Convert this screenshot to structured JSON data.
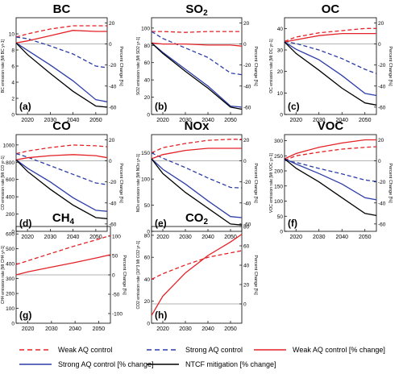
{
  "chart_data": [
    {
      "type": "line",
      "panel": "(a)",
      "title": "BC",
      "ylabel": "BC emission rate [Mt BC yr-1]",
      "y2label": "Percent Change [%]",
      "xticks": [
        "2020",
        "2030",
        "2040",
        "2050"
      ],
      "yticks": [
        "0",
        "2",
        "4",
        "6",
        "8",
        "10"
      ],
      "y2ticks": [
        "20",
        "0",
        "-20",
        "-40",
        "-60"
      ],
      "xlim": [
        2015,
        2055
      ],
      "ylim": [
        0,
        12
      ],
      "y2lim": [
        -67,
        25
      ],
      "series": [
        {
          "name": "Weak AQ control",
          "axis": "left",
          "x": [
            2015,
            2020,
            2030,
            2040,
            2050,
            2055
          ],
          "values": [
            9.6,
            10.0,
            10.6,
            11.0,
            11.0,
            11.0
          ]
        },
        {
          "name": "Strong AQ control",
          "axis": "left",
          "x": [
            2015,
            2020,
            2030,
            2040,
            2050,
            2055
          ],
          "values": [
            9.6,
            9.4,
            8.5,
            7.5,
            6.0,
            5.8
          ]
        },
        {
          "name": "Weak AQ control [% change]",
          "axis": "right",
          "x": [
            2015,
            2020,
            2030,
            2040,
            2050,
            2055
          ],
          "values": [
            1,
            3,
            8,
            13,
            12,
            12
          ]
        },
        {
          "name": "Strong AQ control [% change]",
          "axis": "right",
          "x": [
            2015,
            2020,
            2030,
            2040,
            2050,
            2055
          ],
          "values": [
            1,
            -6,
            -20,
            -35,
            -53,
            -55
          ]
        },
        {
          "name": "NTCF mitigation [% change]",
          "axis": "right",
          "x": [
            2015,
            2020,
            2030,
            2040,
            2050,
            2055
          ],
          "values": [
            1,
            -10,
            -28,
            -45,
            -59,
            -60
          ]
        }
      ]
    },
    {
      "type": "line",
      "panel": "(b)",
      "title": "SO2",
      "ylabel": "SO2 emission rate [Mt SO2 yr-1]",
      "y2label": "Percent Change [%]",
      "xticks": [
        "2020",
        "2030",
        "2040",
        "2050"
      ],
      "yticks": [
        "0",
        "20",
        "40",
        "60",
        "80",
        "100"
      ],
      "y2ticks": [
        "20",
        "0",
        "-20",
        "-40",
        "-60"
      ],
      "xlim": [
        2015,
        2055
      ],
      "ylim": [
        0,
        112
      ],
      "y2lim": [
        -67,
        25
      ],
      "series": [
        {
          "name": "Weak AQ control",
          "axis": "left",
          "x": [
            2015,
            2020,
            2030,
            2040,
            2050,
            2055
          ],
          "values": [
            96,
            96,
            95,
            96,
            96,
            96
          ]
        },
        {
          "name": "Strong AQ control",
          "axis": "left",
          "x": [
            2015,
            2020,
            2030,
            2040,
            2050,
            2055
          ],
          "values": [
            96,
            88,
            77,
            66,
            48,
            46
          ]
        },
        {
          "name": "Weak AQ control [% change]",
          "axis": "right",
          "x": [
            2015,
            2020,
            2030,
            2040,
            2050,
            2055
          ],
          "values": [
            1,
            0,
            0,
            -1,
            -1,
            -2
          ]
        },
        {
          "name": "Strong AQ control [% change]",
          "axis": "right",
          "x": [
            2015,
            2020,
            2030,
            2040,
            2050,
            2055
          ],
          "values": [
            1,
            -8,
            -24,
            -40,
            -59,
            -60
          ]
        },
        {
          "name": "NTCF mitigation [% change]",
          "axis": "right",
          "x": [
            2015,
            2020,
            2030,
            2040,
            2050,
            2055
          ],
          "values": [
            1,
            -9,
            -26,
            -42,
            -60,
            -62
          ]
        }
      ]
    },
    {
      "type": "line",
      "panel": "(c)",
      "title": "OC",
      "ylabel": "OC emission rate [Mt OC yr-1]",
      "y2label": "Percent Change [%]",
      "xticks": [
        "2020",
        "2030",
        "2040",
        "2050"
      ],
      "yticks": [
        "0",
        "10",
        "20",
        "30",
        "40"
      ],
      "y2ticks": [
        "20",
        "0",
        "-20",
        "-40",
        "-60"
      ],
      "xlim": [
        2015,
        2055
      ],
      "ylim": [
        0,
        45
      ],
      "y2lim": [
        -67,
        25
      ],
      "series": [
        {
          "name": "Weak AQ control",
          "axis": "left",
          "x": [
            2015,
            2020,
            2030,
            2040,
            2050,
            2055
          ],
          "values": [
            34,
            36,
            38,
            39,
            40,
            40
          ]
        },
        {
          "name": "Strong AQ control",
          "axis": "left",
          "x": [
            2015,
            2020,
            2030,
            2040,
            2050,
            2055
          ],
          "values": [
            34,
            33,
            30,
            26,
            21,
            19
          ]
        },
        {
          "name": "Weak AQ control [% change]",
          "axis": "right",
          "x": [
            2015,
            2020,
            2030,
            2040,
            2050,
            2055
          ],
          "values": [
            2,
            4,
            8,
            10,
            10,
            10
          ]
        },
        {
          "name": "Strong AQ control [% change]",
          "axis": "right",
          "x": [
            2015,
            2020,
            2030,
            2040,
            2050,
            2055
          ],
          "values": [
            2,
            -5,
            -15,
            -30,
            -47,
            -49
          ]
        },
        {
          "name": "NTCF mitigation [% change]",
          "axis": "right",
          "x": [
            2015,
            2020,
            2030,
            2040,
            2050,
            2055
          ],
          "values": [
            2,
            -9,
            -25,
            -42,
            -56,
            -58
          ]
        }
      ]
    },
    {
      "type": "line",
      "panel": "(d)",
      "title": "CO",
      "ylabel": "CO emission rate [Mt CO yr-1]",
      "y2label": "Percent Change [%]",
      "xticks": [
        "2020",
        "2030",
        "2040",
        "2050"
      ],
      "yticks": [
        "0",
        "200",
        "400",
        "600",
        "800",
        "1000"
      ],
      "y2ticks": [
        "20",
        "0",
        "-20",
        "-40",
        "-60"
      ],
      "xlim": [
        2015,
        2055
      ],
      "ylim": [
        0,
        1120
      ],
      "y2lim": [
        -67,
        25
      ],
      "series": [
        {
          "name": "Weak AQ control",
          "axis": "left",
          "x": [
            2015,
            2020,
            2030,
            2040,
            2050,
            2055
          ],
          "values": [
            900,
            930,
            970,
            1000,
            990,
            980
          ]
        },
        {
          "name": "Strong AQ control",
          "axis": "left",
          "x": [
            2015,
            2020,
            2030,
            2040,
            2050,
            2055
          ],
          "values": [
            900,
            860,
            760,
            660,
            560,
            540
          ]
        },
        {
          "name": "Weak AQ control [% change]",
          "axis": "right",
          "x": [
            2015,
            2020,
            2030,
            2040,
            2050,
            2055
          ],
          "values": [
            1,
            3,
            5,
            6,
            5,
            3
          ]
        },
        {
          "name": "Strong AQ control [% change]",
          "axis": "right",
          "x": [
            2015,
            2020,
            2030,
            2040,
            2050,
            2055
          ],
          "values": [
            1,
            -7,
            -20,
            -35,
            -47,
            -48
          ]
        },
        {
          "name": "NTCF mitigation [% change]",
          "axis": "right",
          "x": [
            2015,
            2020,
            2030,
            2040,
            2050,
            2055
          ],
          "values": [
            1,
            -10,
            -27,
            -42,
            -54,
            -55
          ]
        }
      ]
    },
    {
      "type": "line",
      "panel": "(e)",
      "title": "NOx",
      "ylabel": "NOx emission rate [Mt NOx yr-1]",
      "y2label": "Percent Change [%]",
      "xticks": [
        "2020",
        "2030",
        "2040",
        "2050"
      ],
      "yticks": [
        "0",
        "50",
        "100",
        "150"
      ],
      "y2ticks": [
        "20",
        "0",
        "-20",
        "-40",
        "-60"
      ],
      "xlim": [
        2015,
        2055
      ],
      "ylim": [
        0,
        185
      ],
      "y2lim": [
        -67,
        25
      ],
      "series": [
        {
          "name": "Weak AQ control",
          "axis": "left",
          "x": [
            2015,
            2020,
            2030,
            2040,
            2050,
            2055
          ],
          "values": [
            150,
            160,
            168,
            174,
            176,
            176
          ]
        },
        {
          "name": "Strong AQ control",
          "axis": "left",
          "x": [
            2015,
            2020,
            2030,
            2040,
            2050,
            2055
          ],
          "values": [
            150,
            140,
            122,
            102,
            84,
            83
          ]
        },
        {
          "name": "Weak AQ control [% change]",
          "axis": "right",
          "x": [
            2015,
            2020,
            2030,
            2040,
            2050,
            2055
          ],
          "values": [
            2,
            6,
            10,
            12,
            12,
            12
          ]
        },
        {
          "name": "Strong AQ control [% change]",
          "axis": "right",
          "x": [
            2015,
            2020,
            2030,
            2040,
            2050,
            2055
          ],
          "values": [
            2,
            -8,
            -22,
            -38,
            -53,
            -54
          ]
        },
        {
          "name": "NTCF mitigation [% change]",
          "axis": "right",
          "x": [
            2015,
            2020,
            2030,
            2040,
            2050,
            2055
          ],
          "values": [
            2,
            -12,
            -30,
            -45,
            -60,
            -61
          ]
        }
      ]
    },
    {
      "type": "line",
      "panel": "(f)",
      "title": "VOC",
      "ylabel": "VOC emission rate [Mt VOC yr-1]",
      "y2label": "Percent Change [%]",
      "xticks": [
        "2020",
        "2030",
        "2040",
        "2050"
      ],
      "yticks": [
        "0",
        "50",
        "100",
        "150",
        "200",
        "250",
        "300"
      ],
      "y2ticks": [
        "20",
        "0",
        "-20",
        "-40",
        "-60"
      ],
      "xlim": [
        2015,
        2055
      ],
      "ylim": [
        0,
        320
      ],
      "y2lim": [
        -67,
        25
      ],
      "series": [
        {
          "name": "Weak AQ control",
          "axis": "left",
          "x": [
            2015,
            2020,
            2030,
            2040,
            2050,
            2055
          ],
          "values": [
            235,
            250,
            262,
            272,
            278,
            280
          ]
        },
        {
          "name": "Strong AQ control",
          "axis": "left",
          "x": [
            2015,
            2020,
            2030,
            2040,
            2050,
            2055
          ],
          "values": [
            235,
            228,
            208,
            190,
            170,
            165
          ]
        },
        {
          "name": "Weak AQ control [% change]",
          "axis": "right",
          "x": [
            2015,
            2020,
            2030,
            2040,
            2050,
            2055
          ],
          "values": [
            2,
            7,
            13,
            17,
            20,
            20
          ]
        },
        {
          "name": "Strong AQ control [% change]",
          "axis": "right",
          "x": [
            2015,
            2020,
            2030,
            2040,
            2050,
            2055
          ],
          "values": [
            2,
            -3,
            -12,
            -22,
            -35,
            -37
          ]
        },
        {
          "name": "NTCF mitigation [% change]",
          "axis": "right",
          "x": [
            2015,
            2020,
            2030,
            2040,
            2050,
            2055
          ],
          "values": [
            2,
            -7,
            -20,
            -35,
            -50,
            -52
          ]
        }
      ]
    },
    {
      "type": "line",
      "panel": "(g)",
      "title": "CH4",
      "ylabel": "CH4 emission rate [Mt CH4 yr-1]",
      "y2label": "Percent Change [%]",
      "xticks": [
        "2020",
        "2030",
        "2040",
        "2050"
      ],
      "yticks": [
        "0",
        "100",
        "200",
        "300",
        "400",
        "500",
        "600"
      ],
      "y2ticks": [
        "100",
        "50",
        "0",
        "-50",
        "-100"
      ],
      "xlim": [
        2015,
        2055
      ],
      "ylim": [
        0,
        650
      ],
      "y2lim": [
        -125,
        125
      ],
      "series": [
        {
          "name": "Weak AQ control",
          "axis": "left",
          "x": [
            2015,
            2020,
            2030,
            2040,
            2050,
            2055
          ],
          "values": [
            395,
            420,
            470,
            520,
            565,
            590
          ]
        },
        {
          "name": "Weak AQ control [% change]",
          "axis": "right",
          "x": [
            2015,
            2020,
            2030,
            2040,
            2050,
            2055
          ],
          "values": [
            0,
            8,
            20,
            32,
            45,
            52
          ]
        }
      ]
    },
    {
      "type": "line",
      "panel": "(h)",
      "title": "CO2",
      "ylabel": "CO2 emission rate [10^3 Mt CO2 yr-1]",
      "y2label": "Percent Change [%]",
      "xticks": [
        "2020",
        "2030",
        "2040",
        "2050"
      ],
      "yticks": [
        "0",
        "20",
        "40",
        "60",
        "80"
      ],
      "y2ticks": [
        "80",
        "60",
        "40",
        "20",
        "0"
      ],
      "xlim": [
        2015,
        2055
      ],
      "ylim": [
        0,
        88
      ],
      "y2lim": [
        -20,
        80
      ],
      "series": [
        {
          "name": "Weak AQ control",
          "axis": "left",
          "x": [
            2015,
            2020,
            2030,
            2040,
            2050,
            2055
          ],
          "values": [
            40,
            45,
            53,
            60,
            64,
            66
          ]
        },
        {
          "name": "Weak AQ control [% change]",
          "axis": "right",
          "x": [
            2015,
            2020,
            2030,
            2040,
            2050,
            2055
          ],
          "values": [
            -12,
            8,
            32,
            50,
            64,
            72
          ]
        }
      ]
    }
  ],
  "legend": {
    "items": [
      {
        "label": "Weak AQ control",
        "color": "#e32227",
        "dash": true
      },
      {
        "label": "Strong AQ control",
        "color": "#2c3da8",
        "dash": true
      },
      {
        "label": "Weak AQ control [% change]",
        "color": "#e32227",
        "dash": false
      },
      {
        "label": "Strong AQ control [% change]",
        "color": "#2c3da8",
        "dash": false
      },
      {
        "label": "NTCF mitigation [% change]",
        "color": "#000000",
        "dash": false
      }
    ]
  },
  "colors": {
    "weak": "#e32227",
    "strong": "#2c3da8",
    "ntcf": "#000000",
    "zeroline": "#9a9a9a"
  }
}
